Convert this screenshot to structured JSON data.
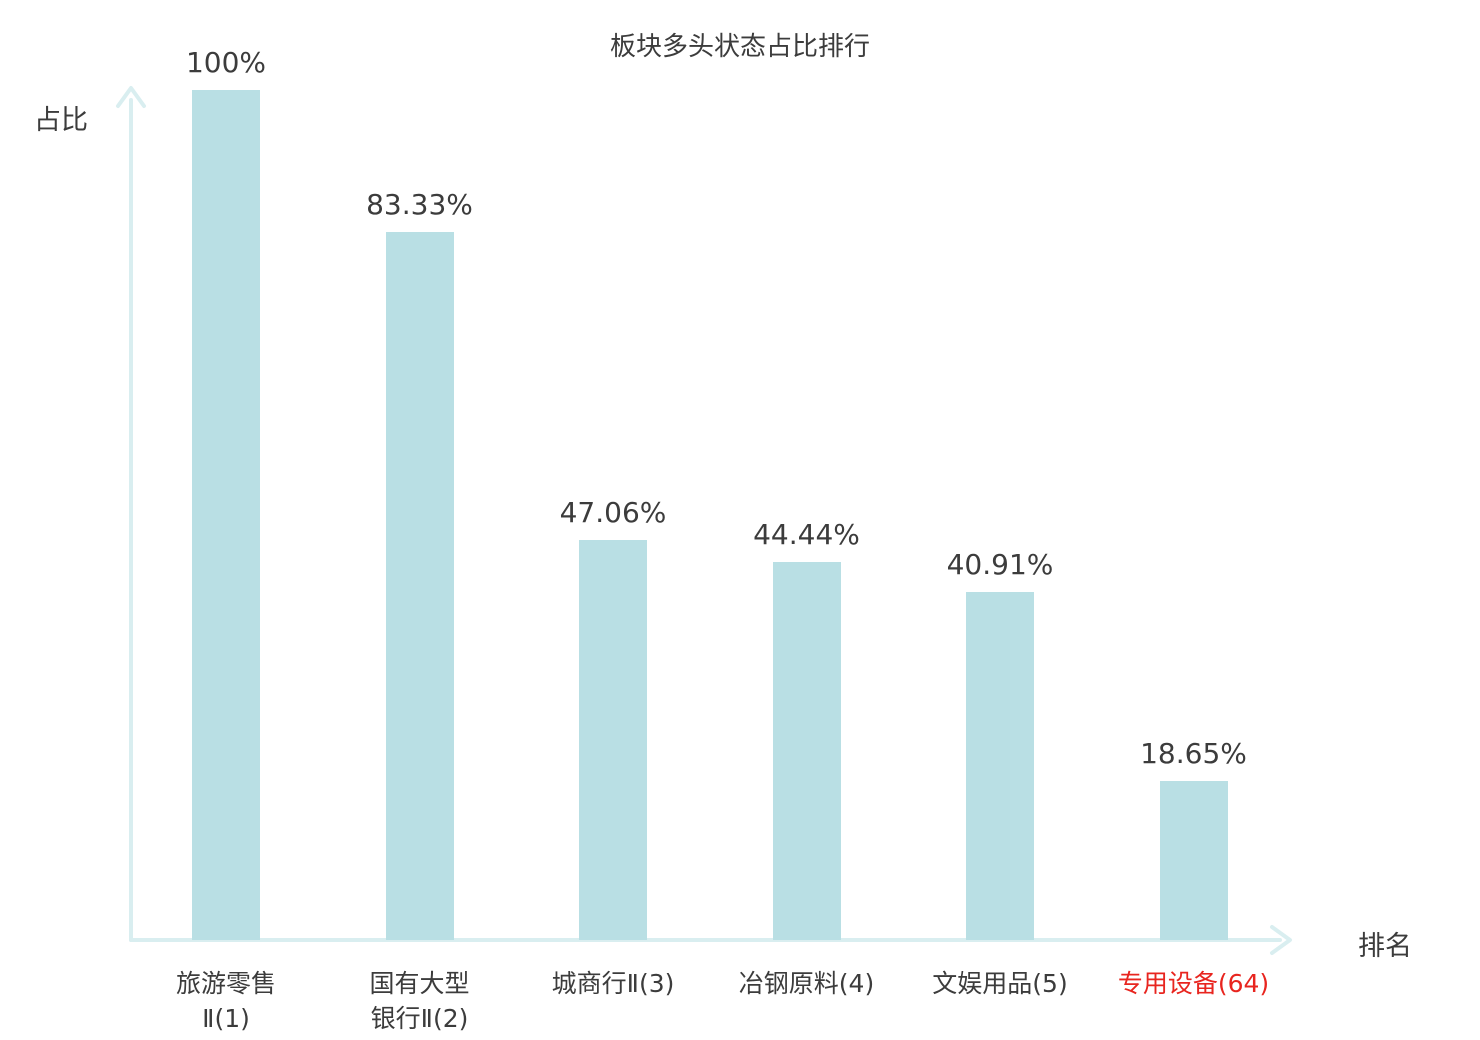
{
  "chart_data": {
    "type": "bar",
    "title": "板块多头状态占比排行",
    "xlabel": "排名",
    "ylabel": "占比",
    "categories": [
      "旅游零售Ⅱ(1)",
      "国有大型银行Ⅱ(2)",
      "城商行Ⅱ(3)",
      "冶钢原料(4)",
      "文娱用品(5)",
      "专用设备(64)"
    ],
    "category_lines": [
      [
        "旅游零售",
        "Ⅱ(1)"
      ],
      [
        "国有大型",
        "银行Ⅱ(2)"
      ],
      [
        "城商行Ⅱ(3)"
      ],
      [
        "冶钢原料(4)"
      ],
      [
        "文娱用品(5)"
      ],
      [
        "专用设备(64)"
      ]
    ],
    "values": [
      100,
      83.33,
      47.06,
      44.44,
      40.91,
      18.65
    ],
    "value_labels": [
      "100%",
      "83.33%",
      "47.06%",
      "44.44%",
      "40.91%",
      "18.65%"
    ],
    "highlight_index": 5,
    "ylim": [
      0,
      100
    ],
    "grid": false,
    "legend": false,
    "colors": {
      "bar": "#b9dfe4",
      "axis": "#d9eef0",
      "text": "#3c3c3c",
      "highlight": "#e8251f",
      "background": "#ffffff"
    }
  }
}
